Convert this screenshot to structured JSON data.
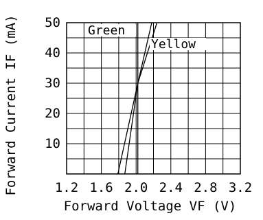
{
  "chart_data": {
    "type": "line",
    "title": "",
    "xlabel": "Forward Voltage VF (V)",
    "ylabel": "Forward Current IF (mA)",
    "xlim": [
      1.2,
      3.2
    ],
    "ylim": [
      0,
      50
    ],
    "x_ticks": [
      "1.2",
      "1.6",
      "2.0",
      "2.4",
      "2.8",
      "3.2"
    ],
    "y_ticks": [
      "10",
      "20",
      "30",
      "40",
      "50"
    ],
    "grid": true,
    "series": [
      {
        "name": "Green",
        "x": [
          1.79,
          2.02,
          2.24
        ],
        "y": [
          0,
          30,
          50
        ]
      },
      {
        "name": "Yellow",
        "x": [
          1.87,
          2.02,
          2.18
        ],
        "y": [
          0,
          30,
          50
        ]
      },
      {
        "name": "",
        "x": [
          2.02,
          2.02
        ],
        "y": [
          0,
          50
        ]
      }
    ]
  }
}
